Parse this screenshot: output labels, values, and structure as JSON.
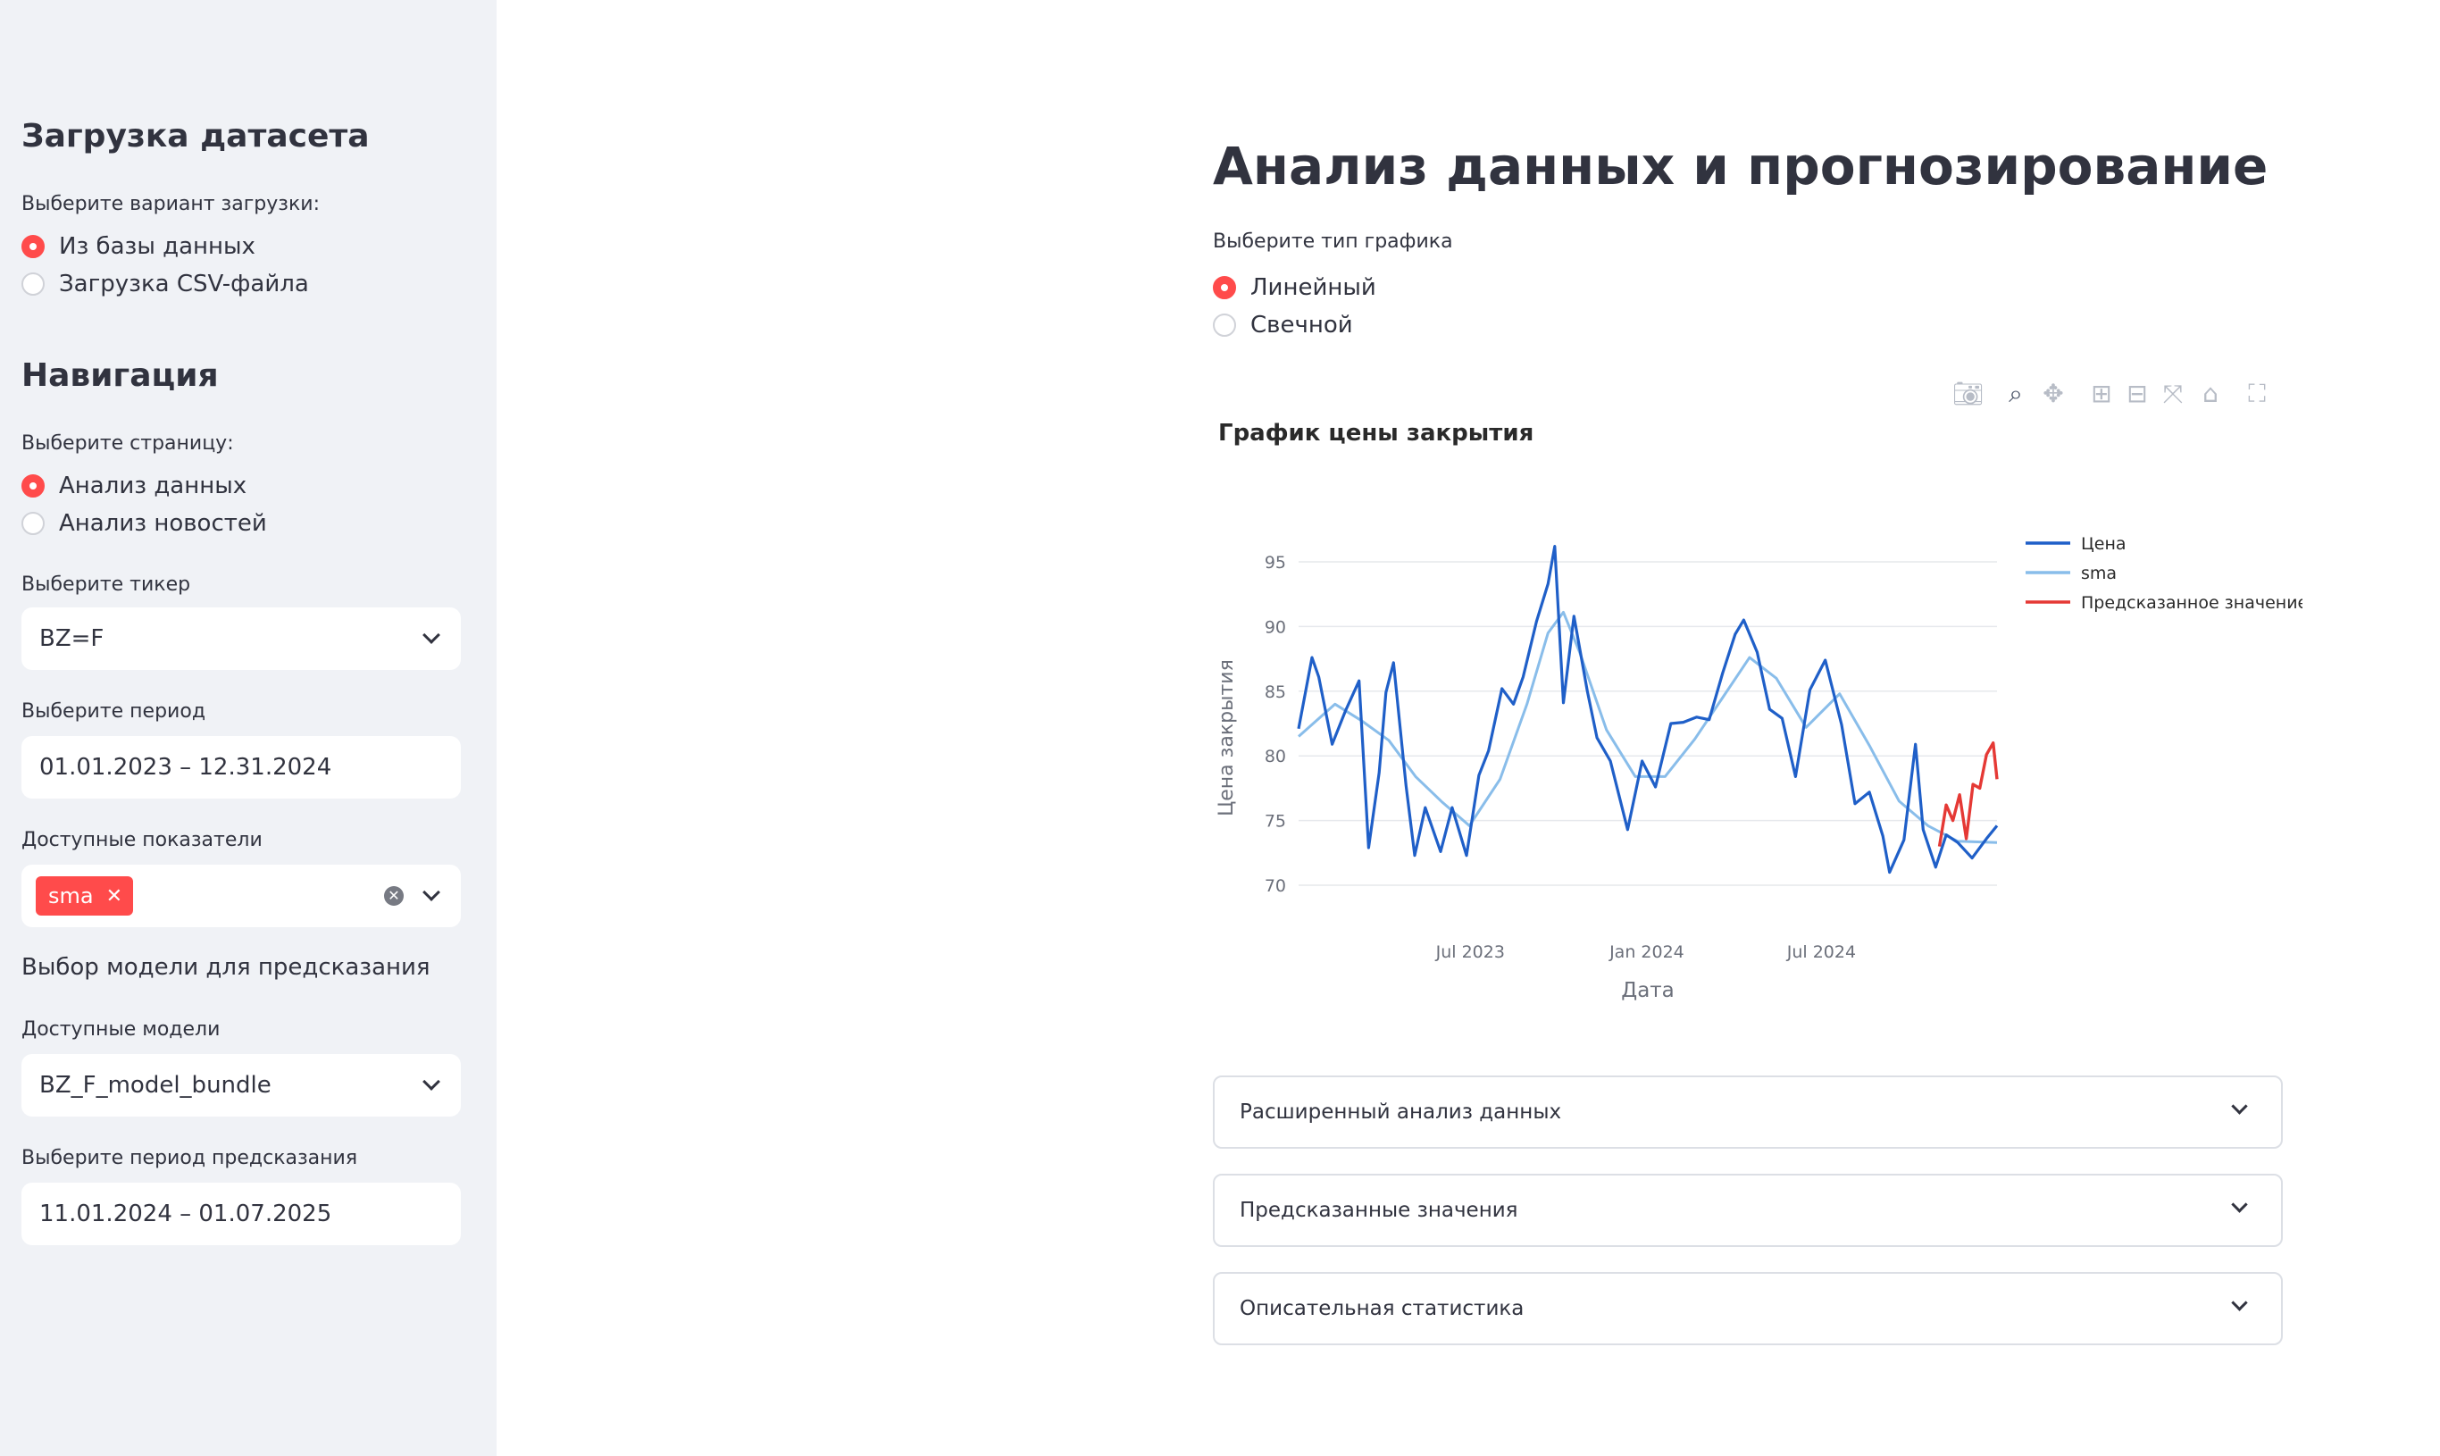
{
  "sidebar": {
    "dataset_title": "Загрузка датасета",
    "load_label": "Выберите вариант загрузки:",
    "load_options": [
      "Из базы данных",
      "Загрузка CSV-файла"
    ],
    "nav_title": "Навигация",
    "page_label": "Выберите страницу:",
    "page_options": [
      "Анализ данных",
      "Анализ новостей"
    ],
    "ticker_label": "Выберите тикер",
    "ticker_value": "BZ=F",
    "period_label": "Выберите период",
    "period_value": "01.01.2023 – 12.31.2024",
    "indicators_label": "Доступные показатели",
    "indicator_tag": "sma",
    "model_section": "Выбор модели для предсказания",
    "models_label": "Доступные модели",
    "model_value": "BZ_F_model_bundle",
    "forecast_label": "Выберите период предсказания",
    "forecast_value": "11.01.2024 – 01.07.2025"
  },
  "main": {
    "title": "Анализ данных и прогнозирование",
    "chart_type_label": "Выберите тип графика",
    "chart_type_options": [
      "Линейный",
      "Свечной"
    ],
    "expanders": [
      "Расширенный анализ данных",
      "Предсказанные значения",
      "Описательная статистика"
    ]
  },
  "toolbar": {
    "icons": [
      "camera-icon",
      "zoom-icon",
      "pan-icon",
      "zoom-in-icon",
      "zoom-out-icon",
      "autoscale-icon",
      "reset-axes-icon",
      "fullscreen-icon"
    ]
  },
  "colors": {
    "accent": "#ff4b4b",
    "price": "#1f5fc8",
    "sma": "#89bdea",
    "predicted": "#e53935"
  },
  "chart_data": {
    "type": "line",
    "title": "График цены закрытия",
    "xlabel": "Дата",
    "ylabel": "Цена закрытия",
    "ylim": [
      68,
      97
    ],
    "yticks": [
      70,
      75,
      80,
      85,
      90,
      95
    ],
    "xticks": [
      "2023-07-01",
      "2024-01-01",
      "2024-07-01"
    ],
    "xtick_labels": [
      "Jul 2023",
      "Jan 2024",
      "Jul 2024"
    ],
    "xlim": [
      "2023-01-03",
      "2024-12-31"
    ],
    "legend_position": "top-right",
    "grid": true,
    "series": [
      {
        "name": "Цена",
        "x": [
          "2023-01-03",
          "2023-01-17",
          "2023-01-24",
          "2023-02-07",
          "2023-02-21",
          "2023-03-07",
          "2023-03-17",
          "2023-03-28",
          "2023-04-04",
          "2023-04-12",
          "2023-04-25",
          "2023-05-04",
          "2023-05-15",
          "2023-05-31",
          "2023-06-12",
          "2023-06-27",
          "2023-07-10",
          "2023-07-20",
          "2023-08-03",
          "2023-08-15",
          "2023-08-25",
          "2023-09-08",
          "2023-09-20",
          "2023-09-27",
          "2023-10-06",
          "2023-10-17",
          "2023-10-31",
          "2023-11-10",
          "2023-11-24",
          "2023-12-12",
          "2023-12-27",
          "2024-01-10",
          "2024-01-26",
          "2024-02-08",
          "2024-02-22",
          "2024-03-06",
          "2024-03-20",
          "2024-04-02",
          "2024-04-11",
          "2024-04-25",
          "2024-05-08",
          "2024-05-21",
          "2024-06-04",
          "2024-06-19",
          "2024-07-05",
          "2024-07-22",
          "2024-08-05",
          "2024-08-20",
          "2024-09-03",
          "2024-09-10",
          "2024-09-25",
          "2024-10-07",
          "2024-10-15",
          "2024-10-28",
          "2024-11-08",
          "2024-11-20",
          "2024-12-05",
          "2024-12-20",
          "2024-12-31"
        ],
        "y": [
          82.1,
          87.6,
          86.1,
          80.9,
          83.5,
          85.8,
          72.9,
          78.7,
          84.9,
          87.2,
          77.7,
          72.3,
          76.0,
          72.6,
          76.0,
          72.3,
          78.5,
          80.4,
          85.2,
          84.0,
          86.1,
          90.4,
          93.3,
          96.2,
          84.1,
          90.8,
          85.0,
          81.4,
          79.6,
          74.3,
          79.6,
          77.6,
          82.5,
          82.6,
          83.0,
          82.8,
          86.4,
          89.4,
          90.5,
          88.0,
          83.6,
          82.9,
          78.4,
          85.1,
          87.4,
          82.4,
          76.3,
          77.2,
          73.8,
          71.0,
          73.5,
          80.9,
          74.3,
          71.4,
          73.9,
          73.3,
          72.1,
          73.6,
          74.6
        ]
      },
      {
        "name": "sma",
        "x": [
          "2023-01-03",
          "2023-02-10",
          "2023-03-10",
          "2023-04-07",
          "2023-05-05",
          "2023-06-02",
          "2023-06-30",
          "2023-08-01",
          "2023-08-29",
          "2023-09-20",
          "2023-10-06",
          "2023-10-23",
          "2023-11-20",
          "2023-12-20",
          "2024-01-20",
          "2024-02-20",
          "2024-03-20",
          "2024-04-17",
          "2024-05-15",
          "2024-06-15",
          "2024-07-20",
          "2024-08-20",
          "2024-09-20",
          "2024-10-20",
          "2024-11-20",
          "2024-12-31"
        ],
        "y": [
          81.5,
          84.0,
          82.7,
          81.2,
          78.4,
          76.4,
          74.6,
          78.2,
          84.0,
          89.5,
          91.1,
          88.0,
          82.0,
          78.4,
          78.4,
          81.3,
          84.5,
          87.6,
          86.0,
          82.2,
          84.8,
          80.8,
          76.5,
          74.6,
          73.4,
          73.3
        ]
      },
      {
        "name": "Предсказанное значение",
        "x": [
          "2024-11-01",
          "2024-11-08",
          "2024-11-15",
          "2024-11-22",
          "2024-11-29",
          "2024-12-06",
          "2024-12-13",
          "2024-12-20",
          "2024-12-27",
          "2024-12-31"
        ],
        "y": [
          73.0,
          76.2,
          75.0,
          77.0,
          73.6,
          77.8,
          77.5,
          80.1,
          81.0,
          78.2
        ]
      }
    ]
  }
}
